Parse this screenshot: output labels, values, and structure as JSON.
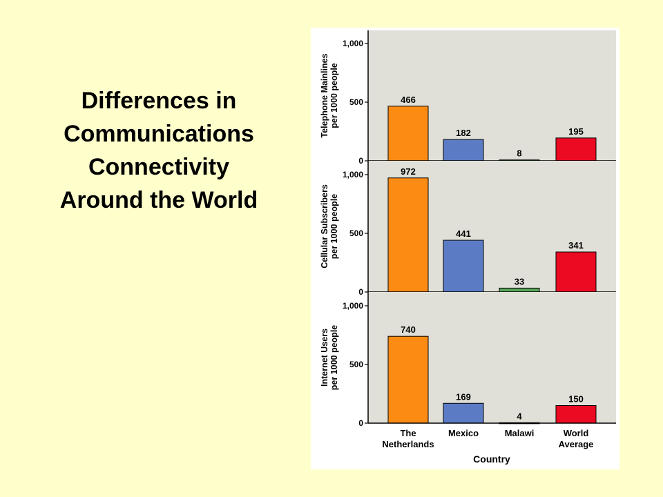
{
  "slide": {
    "title_lines": [
      "Differences in",
      "Communications",
      "Connectivity",
      "Around the World"
    ]
  },
  "chart_data": {
    "type": "bar",
    "categories": [
      [
        "The",
        "Netherlands"
      ],
      [
        "Mexico"
      ],
      [
        "Malawi"
      ],
      [
        "World",
        "Average"
      ]
    ],
    "xlabel": "Country",
    "ylim": [
      0,
      1000
    ],
    "yticks": [
      "1,000",
      "500",
      "0"
    ],
    "colors": [
      "#fb8b13",
      "#5b7cc4",
      "#5aa55a",
      "#ec0a23"
    ],
    "panel_background": "#e0e0d8",
    "panels": [
      {
        "ylabel": [
          "Telephone Mainlines",
          "per 1000 people"
        ],
        "values": [
          466,
          182,
          8,
          195
        ]
      },
      {
        "ylabel": [
          "Cellular Subscribers",
          "per 1000 people"
        ],
        "values": [
          972,
          441,
          33,
          341
        ]
      },
      {
        "ylabel": [
          "Internet Users",
          "per 1000 people"
        ],
        "values": [
          740,
          169,
          4,
          150
        ]
      }
    ]
  }
}
